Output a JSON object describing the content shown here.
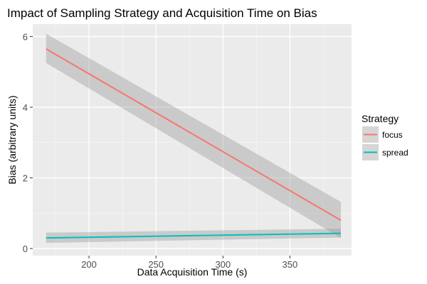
{
  "chart_data": {
    "type": "line",
    "title": "Impact of Sampling Strategy and Acquisition Time on Bias",
    "xlabel": "Data Acquisition Time (s)",
    "ylabel": "Bias (arbitrary units)",
    "xlim": [
      158,
      396
    ],
    "ylim": [
      -0.2,
      6.35
    ],
    "x_ticks": [
      200,
      250,
      300,
      350
    ],
    "y_ticks": [
      0,
      2,
      4,
      6
    ],
    "grid": true,
    "legend_title": "Strategy",
    "legend_position": "right",
    "series": [
      {
        "name": "focus",
        "color": "#F8766D",
        "x": [
          168,
          388
        ],
        "y": [
          5.65,
          0.8
        ],
        "ci_lower": [
          5.25,
          0.3
        ],
        "ci_upper": [
          6.08,
          1.32
        ]
      },
      {
        "name": "spread",
        "color": "#00BFC4",
        "x": [
          168,
          388
        ],
        "y": [
          0.3,
          0.43
        ],
        "ci_lower": [
          0.16,
          0.31
        ],
        "ci_upper": [
          0.45,
          0.56
        ]
      }
    ]
  }
}
